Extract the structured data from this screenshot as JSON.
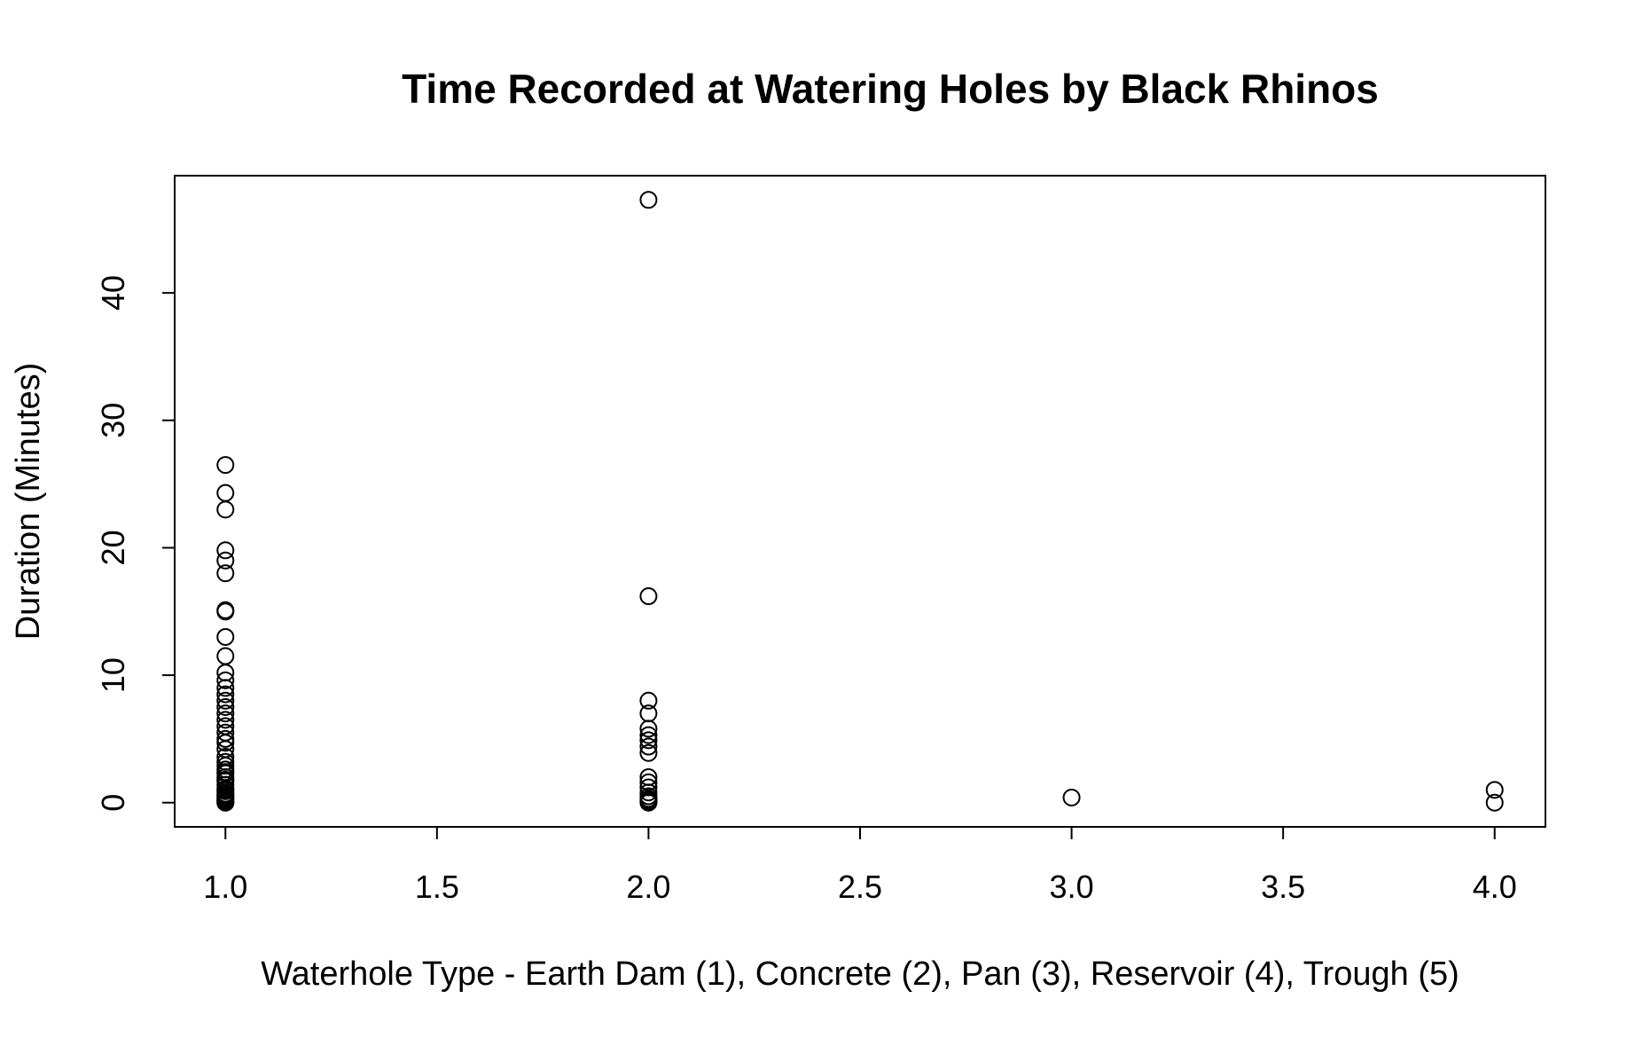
{
  "chart_data": {
    "type": "scatter",
    "title": "Time Recorded at Watering Holes by Black Rhinos",
    "xlabel": "Waterhole Type - Earth Dam (1), Concrete (2), Pan (3), Reservoir (4), Trough (5)",
    "ylabel": "Duration (Minutes)",
    "xlim": [
      0.88,
      4.12
    ],
    "ylim": [
      -1.9,
      49.2
    ],
    "xticks": [
      "1.0",
      "1.5",
      "2.0",
      "2.5",
      "3.0",
      "3.5",
      "4.0"
    ],
    "yticks": [
      "0",
      "10",
      "20",
      "30",
      "40"
    ],
    "grid": false,
    "points": {
      "x": [
        1,
        1,
        1,
        1,
        1,
        1,
        1,
        1,
        1,
        1,
        1,
        1,
        1,
        1,
        1,
        1,
        1,
        1,
        1,
        1,
        1,
        1,
        1,
        1,
        1,
        1,
        1,
        1,
        1,
        1,
        1,
        1,
        1,
        1,
        1,
        1,
        1,
        1,
        1,
        1,
        1,
        1,
        1,
        1,
        1,
        2,
        2,
        2,
        2,
        2,
        2,
        2,
        2,
        2,
        2,
        2,
        2,
        2,
        2,
        2,
        2,
        2,
        2,
        3,
        4,
        4
      ],
      "y": [
        26.5,
        24.3,
        23.0,
        19.8,
        19.0,
        18.0,
        15.1,
        15.0,
        13.0,
        11.5,
        10.2,
        9.6,
        9.0,
        8.5,
        8.0,
        7.5,
        7.0,
        6.5,
        6.0,
        5.5,
        5.0,
        4.7,
        4.2,
        3.6,
        3.2,
        2.9,
        2.6,
        2.3,
        2.0,
        1.7,
        1.4,
        1.1,
        0.9,
        0.7,
        0.5,
        0.4,
        0.3,
        0.2,
        0.1,
        0.0,
        0.0,
        1.0,
        1.8,
        2.4,
        0.6,
        47.3,
        16.2,
        8.0,
        7.0,
        5.8,
        5.3,
        4.9,
        4.4,
        3.9,
        2.0,
        1.6,
        1.2,
        0.8,
        0.5,
        0.3,
        0.2,
        0.1,
        0.0,
        0.4,
        1.0,
        0.0
      ]
    }
  }
}
